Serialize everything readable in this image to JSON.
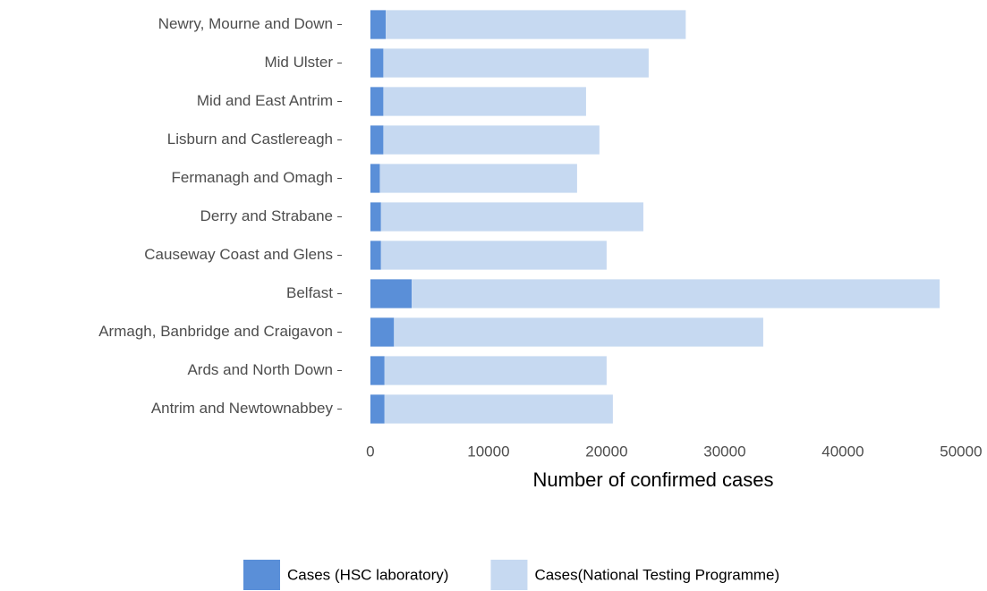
{
  "chart_data": {
    "type": "stacked-barh",
    "categories": [
      "Newry, Mourne and Down",
      "Mid Ulster",
      "Mid and East Antrim",
      "Lisburn and Castlereagh",
      "Fermanagh and Omagh",
      "Derry and Strabane",
      "Causeway Coast and Glens",
      "Belfast",
      "Armagh, Banbridge and Craigavon",
      "Ards and North Down",
      "Antrim and Newtownabbey"
    ],
    "series": [
      {
        "name": "Cases (HSC laboratory)",
        "color": "#5a8fd8",
        "values": [
          1300,
          1100,
          1100,
          1100,
          800,
          900,
          900,
          3500,
          2000,
          1200,
          1200
        ]
      },
      {
        "name": "Cases(National Testing Programme)",
        "color": "#c6d9f1",
        "values": [
          25400,
          22460,
          17160,
          18290,
          16700,
          22210,
          19100,
          44700,
          31260,
          18800,
          19330
        ]
      }
    ],
    "xlabel": "Number of confirmed cases",
    "xlim": [
      -2000,
      52000
    ],
    "xticks": [
      0,
      10000,
      20000,
      30000,
      40000,
      50000
    ],
    "grid": false,
    "legend": "bottom"
  }
}
